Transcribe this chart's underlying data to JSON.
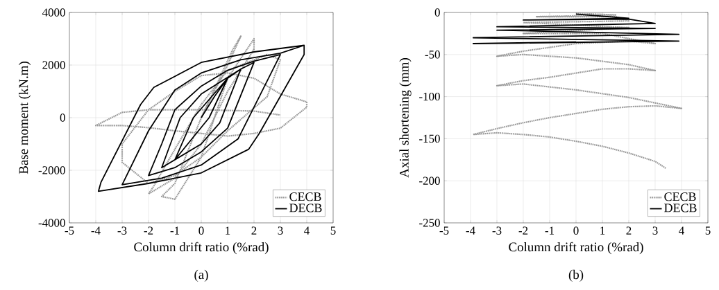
{
  "chart_data": [
    {
      "type": "line",
      "xlabel": "Column drift ratio (%rad)",
      "ylabel": "Base moment (kN.m)",
      "annotations": [
        "(a)"
      ],
      "xlim": [
        -5,
        5
      ],
      "ylim": [
        -4000,
        4000
      ],
      "xticks": [
        -5,
        -4,
        -3,
        -2,
        -1,
        0,
        1,
        2,
        3,
        4,
        5
      ],
      "yticks": [
        -4000,
        -2000,
        0,
        2000,
        4000
      ],
      "grid": true,
      "legend": "bottom right",
      "series": [
        {
          "name": "CECB",
          "color": "#999999",
          "line_style": "dotted",
          "x": [
            0,
            1,
            1.5,
            1.2,
            0,
            -1,
            -1.5,
            -1,
            0,
            1,
            2,
            2,
            1,
            0,
            -1,
            -2,
            -1.8,
            -1,
            0,
            1,
            2.5,
            3,
            2.5,
            1,
            0,
            -1,
            -2,
            -3,
            -3,
            -2,
            -1,
            0,
            1,
            2,
            3,
            4,
            4,
            3,
            2,
            1,
            0,
            -1,
            -2,
            -3,
            -4,
            -3,
            -2,
            0,
            2,
            3
          ],
          "values": [
            0,
            2000,
            3100,
            2600,
            0,
            -2500,
            -3000,
            -3100,
            -1500,
            1500,
            3000,
            2600,
            1000,
            -1000,
            -2300,
            -2900,
            -2600,
            -1200,
            500,
            1800,
            2400,
            2200,
            800,
            -500,
            -1500,
            -2200,
            -2500,
            -1700,
            -1000,
            300,
            1000,
            1600,
            1700,
            1500,
            900,
            600,
            400,
            -400,
            -600,
            -700,
            -600,
            -500,
            -380,
            -300,
            -300,
            200,
            300,
            300,
            250,
            100
          ]
        },
        {
          "name": "DECB",
          "color": "#000000",
          "line_style": "solid",
          "x": [
            0,
            0.5,
            1,
            0.3,
            -1,
            -0.3,
            1,
            1.5,
            0.7,
            0,
            -1.5,
            -0.8,
            0,
            1.5,
            2,
            1,
            0,
            -1,
            -2,
            -1.5,
            -1,
            0,
            1,
            2,
            3,
            1.4,
            0,
            -1.5,
            -3,
            -2,
            -1,
            0,
            1.5,
            3,
            3.9,
            3.9,
            2.2,
            1.8,
            0,
            -2,
            -3.9,
            -3.8,
            -2.3,
            -1.8,
            0,
            2,
            3.9
          ],
          "values": [
            0,
            800,
            1500,
            0,
            -1600,
            0,
            1500,
            1850,
            -200,
            -1000,
            -1900,
            0,
            900,
            1850,
            2100,
            -400,
            -1300,
            -1900,
            -2200,
            -1000,
            300,
            1200,
            1800,
            2150,
            2400,
            -800,
            -1800,
            -2300,
            -2550,
            -500,
            1050,
            1700,
            2200,
            2450,
            2750,
            2400,
            -600,
            -1200,
            -2100,
            -2500,
            -2800,
            -2450,
            500,
            1150,
            2100,
            2500,
            2750
          ]
        }
      ]
    },
    {
      "type": "line",
      "xlabel": "Column drift ratio (%rad)",
      "ylabel": "Axial shortening (mm)",
      "annotations": [
        "(b)"
      ],
      "xlim": [
        -5,
        5
      ],
      "ylim": [
        -250,
        0
      ],
      "xticks": [
        -5,
        -4,
        -3,
        -2,
        -1,
        0,
        1,
        2,
        3,
        4,
        5
      ],
      "yticks": [
        -250,
        -200,
        -150,
        -100,
        -50,
        0
      ],
      "grid": true,
      "legend": "bottom right",
      "series": [
        {
          "name": "CECB",
          "color": "#999999",
          "line_style": "dotted",
          "x": [
            0,
            1.5,
            -1.5,
            1.5,
            2,
            -2,
            2,
            -2,
            1,
            3,
            2,
            0,
            -2,
            -3,
            -2,
            0,
            2,
            3,
            2,
            1,
            0,
            -1,
            -2,
            -3,
            -2,
            0,
            2,
            4,
            3,
            2,
            1,
            0,
            -1,
            -2,
            -3,
            -3.9,
            -3,
            -2,
            -1,
            0,
            1,
            2,
            3,
            3.4
          ],
          "values": [
            -1,
            -3,
            -5,
            -5,
            -10,
            -12,
            -18,
            -25,
            -25,
            -37,
            -34,
            -37,
            -46,
            -52,
            -50,
            -54,
            -62,
            -69,
            -67,
            -67,
            -72,
            -77,
            -81,
            -87,
            -85,
            -92,
            -101,
            -114,
            -111,
            -112,
            -115,
            -120,
            -125,
            -131,
            -138,
            -145,
            -143,
            -145,
            -148,
            -153,
            -159,
            -167,
            -177,
            -185
          ]
        },
        {
          "name": "DECB",
          "color": "#000000",
          "line_style": "solid",
          "x": [
            0,
            2,
            -2,
            2,
            3,
            -3,
            3,
            -3,
            3.9,
            -3.9,
            3.9,
            -3.9,
            0
          ],
          "values": [
            -2,
            -7,
            -9,
            -8,
            -13,
            -17,
            -19,
            -21,
            -26,
            -30,
            -34,
            -37,
            -35
          ]
        }
      ]
    }
  ]
}
